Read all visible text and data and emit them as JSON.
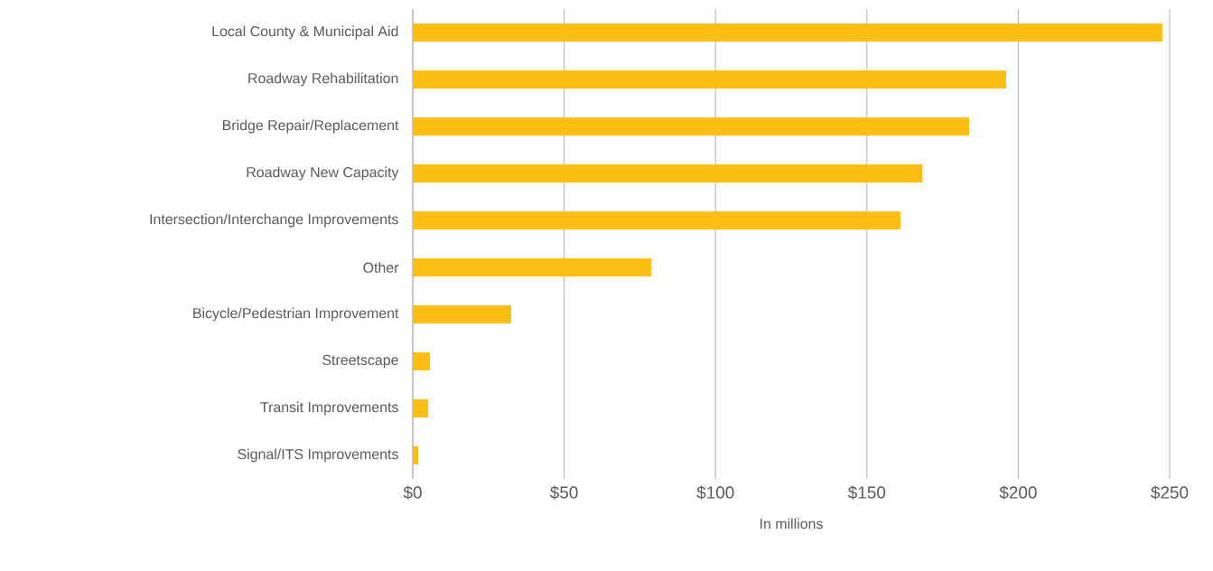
{
  "chart_data": {
    "type": "bar",
    "orientation": "horizontal",
    "xlabel": "In millions",
    "categories": [
      "Local County & Municipal Aid",
      "Roadway Rehabilitation",
      "Bridge Repair/Replacement",
      "Roadway New Capacity",
      "Intersection/Interchange Improvements",
      "Other",
      "Bicycle/Pedestrian Improvement",
      "Streetscape",
      "Transit Improvements",
      "Signal/ITS Improvements"
    ],
    "values": [
      247.6,
      196,
      183.8,
      168.3,
      161.1,
      78.8,
      32.5,
      5.7,
      5.1,
      1.8
    ],
    "color": "#fbbf14",
    "xlim": [
      0,
      250
    ],
    "xticks": [
      {
        "value": 0,
        "label": "$0"
      },
      {
        "value": 50,
        "label": "$50"
      },
      {
        "value": 100,
        "label": "$100"
      },
      {
        "value": 150,
        "label": "$150"
      },
      {
        "value": 200,
        "label": "$200"
      },
      {
        "value": 250,
        "label": "$250"
      }
    ],
    "grid": "x"
  }
}
